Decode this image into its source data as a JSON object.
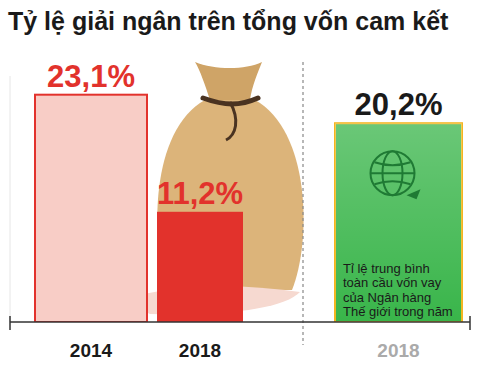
{
  "chart_data": {
    "type": "bar",
    "title": "Tỷ lệ giải ngân trên tổng vốn cam kết",
    "categories": [
      "2014",
      "2018",
      "2018"
    ],
    "values": [
      23.1,
      11.2,
      20.2
    ],
    "value_labels": [
      "23,1%",
      "11,2%",
      "20,2%"
    ],
    "colors": [
      "#f8cdc6",
      "#e2322c",
      "#39b54a"
    ],
    "ylim": [
      0,
      25
    ],
    "data_labels": true,
    "tick_labels": "x",
    "grid": false,
    "annotations": [
      "Tỉ lệ trung bình toàn cầu vốn vay của Ngân hàng Thế giới trong năm"
    ]
  }
}
